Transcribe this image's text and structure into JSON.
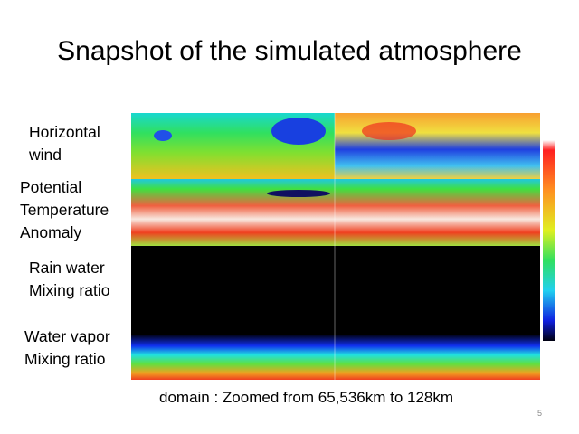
{
  "title": "Snapshot of the simulated atmosphere",
  "labels": [
    [
      "Horizontal",
      "wind"
    ],
    [
      "Potential",
      "Temperature",
      "Anomaly"
    ],
    [
      "Rain water",
      "Mixing ratio"
    ],
    [
      "Water vapor",
      "Mixing ratio"
    ]
  ],
  "caption": "domain :  Zoomed from 65,536km to 128km",
  "page_number": "5"
}
